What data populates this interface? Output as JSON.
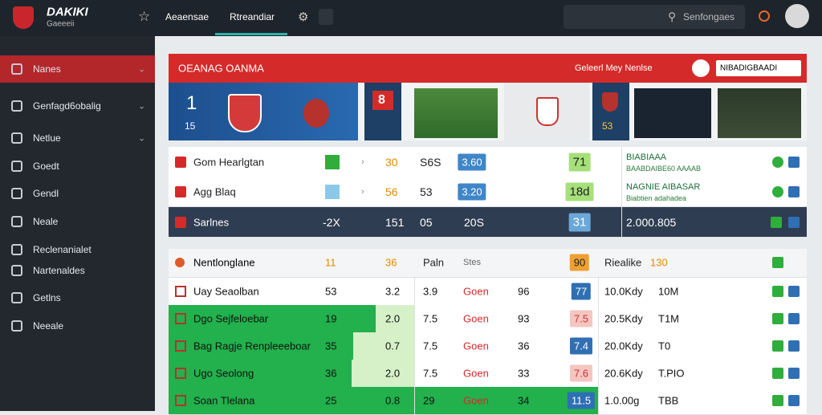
{
  "topbar": {
    "logo_title": "DAKIKI",
    "logo_sub": "Gaeeeii",
    "tabs": [
      "Aeaensae",
      "Rtreandiar"
    ],
    "search_placeholder": "Senfongaes"
  },
  "sidebar": {
    "items": [
      "Nanes",
      "Genfagd6obalig",
      "Netlue",
      "Goedt",
      "Gendl",
      "Neale",
      "Reclenanialet",
      "Nartenaldes",
      "Getlns",
      "Neeale"
    ]
  },
  "panel": {
    "title": "OEANAG OANMA",
    "subtitle": "Geleerl Mey Nenlse",
    "button": "NIBADIGBAADI"
  },
  "tiles": {
    "score_a": "1",
    "score_a_sub": "15",
    "score_b": "8",
    "score_b_sub": "53"
  },
  "table1": {
    "rows": [
      {
        "name": "Gom Hearlgtan",
        "v1": "30",
        "v2": "S6S",
        "v3": "3.60",
        "v4": "71",
        "r1": "BIABIAAA",
        "r2": "BAABDAIBE60 AAAAB"
      },
      {
        "name": "Agg Blaq",
        "v1": "56",
        "v2": "53",
        "v3": "3.20",
        "v4": "18d",
        "r1": "NAGNIE AIBASAR",
        "r2": "Biabtien adahadea"
      },
      {
        "name": "Sarlnes",
        "delta": "-2X",
        "v1": "151",
        "v2": "05",
        "v3": "20S",
        "v4": "31",
        "r1": "2.000.805"
      }
    ]
  },
  "table2": {
    "header": {
      "name": "Nentlonglane",
      "a": "11",
      "b": "36",
      "c": "Paln",
      "d": "Stes",
      "f": "90",
      "g": "Riealike",
      "h": "130"
    },
    "rows": [
      {
        "name": "Uay Seaolban",
        "a": "53",
        "b": "3.2",
        "c": "3.9",
        "d": "Goen",
        "e": "96",
        "f": "77",
        "g": "10.0Kdy",
        "h": "10M"
      },
      {
        "name": "Dgo Sejfeloebar",
        "a": "19",
        "b": "2.0",
        "c": "7.5",
        "d": "Goen",
        "e": "93",
        "f": "7.5",
        "g": "20.5Kdy",
        "h": "T1M"
      },
      {
        "name": "Bag Ragje Renpleeeboar",
        "a": "35",
        "b": "0.7",
        "c": "7.5",
        "d": "Goen",
        "e": "36",
        "f": "7.4",
        "g": "20.0Kdy",
        "h": "T0"
      },
      {
        "name": "Ugo Seolong",
        "a": "36",
        "b": "2.0",
        "c": "7.5",
        "d": "Goen",
        "e": "33",
        "f": "7.6",
        "g": "20.6Kdy",
        "h": "T.PIO"
      },
      {
        "name": "Soan Tlelana",
        "a": "25",
        "b": "0.8",
        "c": "29",
        "d": "Goen",
        "e": "34",
        "f": "11.5",
        "g": "1.0.00g",
        "h": "TBB"
      }
    ]
  }
}
